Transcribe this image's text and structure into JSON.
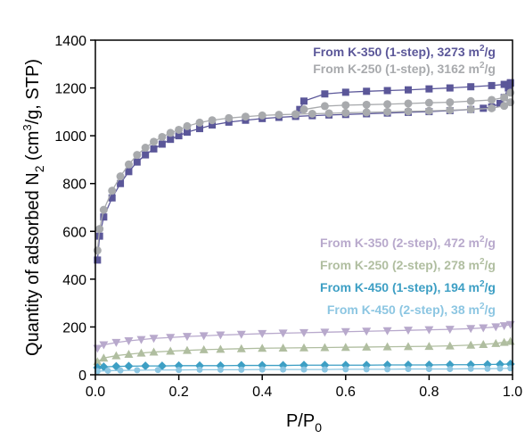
{
  "chart_data": {
    "type": "scatter",
    "xlabel": "P/P",
    "xlabel_sub": "0",
    "ylabel": "Quantity of adsorbed N",
    "ylabel_sub": "2",
    "ylabel_tail_a": " (cm",
    "ylabel_sup": "3",
    "ylabel_tail_b": "/g, STP)",
    "xlim": [
      0.0,
      1.0
    ],
    "ylim": [
      0,
      1400
    ],
    "xticks": [
      "0.0",
      "0.2",
      "0.4",
      "0.6",
      "0.8",
      "1.0"
    ],
    "yticks": [
      "0",
      "200",
      "400",
      "600",
      "800",
      "1000",
      "1200",
      "1400"
    ],
    "grid": false,
    "legend_placement": "top-right and middle-right",
    "series": [
      {
        "name": "From K-350 (1-step), 3273 m",
        "name_sup": "2",
        "name_tail": "/g",
        "color": "#5b5799",
        "marker": "square",
        "adsorption": {
          "x": [
            0.005,
            0.01,
            0.02,
            0.04,
            0.06,
            0.08,
            0.1,
            0.12,
            0.14,
            0.16,
            0.18,
            0.2,
            0.22,
            0.25,
            0.28,
            0.32,
            0.36,
            0.4,
            0.44,
            0.48,
            0.52,
            0.56,
            0.6,
            0.65,
            0.7,
            0.75,
            0.8,
            0.85,
            0.9,
            0.93,
            0.95,
            0.97,
            0.98,
            0.99,
            0.995
          ],
          "y": [
            480,
            580,
            660,
            740,
            800,
            850,
            890,
            920,
            945,
            965,
            985,
            1000,
            1015,
            1030,
            1045,
            1057,
            1065,
            1072,
            1077,
            1081,
            1084,
            1087,
            1089,
            1092,
            1095,
            1098,
            1101,
            1105,
            1110,
            1115,
            1120,
            1135,
            1160,
            1200,
            1220
          ]
        },
        "desorption": {
          "x": [
            0.995,
            0.98,
            0.95,
            0.9,
            0.85,
            0.8,
            0.75,
            0.7,
            0.65,
            0.6,
            0.55,
            0.5,
            0.49,
            0.48
          ],
          "y": [
            1222,
            1215,
            1210,
            1205,
            1200,
            1196,
            1192,
            1189,
            1186,
            1182,
            1175,
            1145,
            1110,
            1085
          ]
        }
      },
      {
        "name": "From K-250 (1-step), 3162 m",
        "name_sup": "2",
        "name_tail": "/g",
        "color": "#a8aaad",
        "marker": "circle",
        "adsorption": {
          "x": [
            0.005,
            0.01,
            0.02,
            0.04,
            0.06,
            0.08,
            0.1,
            0.12,
            0.14,
            0.16,
            0.18,
            0.2,
            0.22,
            0.25,
            0.28,
            0.32,
            0.36,
            0.4,
            0.44,
            0.48,
            0.52,
            0.56,
            0.6,
            0.65,
            0.7,
            0.75,
            0.8,
            0.85,
            0.9,
            0.95,
            0.98,
            0.995
          ],
          "y": [
            520,
            610,
            690,
            770,
            830,
            880,
            920,
            950,
            975,
            995,
            1012,
            1025,
            1040,
            1055,
            1065,
            1074,
            1080,
            1085,
            1088,
            1090,
            1092,
            1094,
            1096,
            1098,
            1100,
            1102,
            1104,
            1107,
            1110,
            1115,
            1125,
            1140
          ]
        },
        "desorption": {
          "x": [
            0.995,
            0.98,
            0.95,
            0.9,
            0.85,
            0.8,
            0.75,
            0.7,
            0.65,
            0.6,
            0.55,
            0.5,
            0.48
          ],
          "y": [
            1180,
            1160,
            1150,
            1145,
            1140,
            1138,
            1135,
            1132,
            1130,
            1128,
            1124,
            1110,
            1090
          ]
        }
      },
      {
        "name": "From K-350 (2-step), 472 m",
        "name_sup": "2",
        "name_tail": "/g",
        "color": "#b8a9cc",
        "marker": "triangle-down",
        "adsorption": {
          "x": [
            0.005,
            0.02,
            0.05,
            0.08,
            0.11,
            0.14,
            0.18,
            0.22,
            0.26,
            0.3,
            0.35,
            0.4,
            0.45,
            0.5,
            0.55,
            0.6,
            0.65,
            0.7,
            0.75,
            0.8,
            0.85,
            0.9,
            0.93,
            0.96,
            0.98,
            0.995
          ],
          "y": [
            110,
            125,
            135,
            142,
            147,
            152,
            156,
            160,
            163,
            166,
            169,
            172,
            174,
            176,
            178,
            180,
            182,
            184,
            186,
            188,
            190,
            193,
            196,
            200,
            205,
            210
          ]
        },
        "desorption": {
          "x": [],
          "y": []
        }
      },
      {
        "name": "From K-250 (2-step), 278 m",
        "name_sup": "2",
        "name_tail": "/g",
        "color": "#b0bea0",
        "marker": "triangle-up",
        "adsorption": {
          "x": [
            0.005,
            0.02,
            0.05,
            0.08,
            0.11,
            0.14,
            0.18,
            0.22,
            0.26,
            0.3,
            0.35,
            0.4,
            0.45,
            0.5,
            0.55,
            0.6,
            0.65,
            0.7,
            0.75,
            0.8,
            0.85,
            0.9,
            0.93,
            0.96,
            0.98,
            0.995
          ],
          "y": [
            55,
            70,
            80,
            86,
            91,
            95,
            99,
            102,
            105,
            107,
            109,
            111,
            112,
            113,
            114,
            115,
            116,
            117,
            118,
            119,
            121,
            124,
            127,
            131,
            136,
            140
          ]
        },
        "desorption": {
          "x": [],
          "y": []
        }
      },
      {
        "name": "From K-450 (1-step), 194 m",
        "name_sup": "2",
        "name_tail": "/g",
        "color": "#3d9fc4",
        "marker": "diamond",
        "adsorption": {
          "x": [
            0.005,
            0.02,
            0.05,
            0.08,
            0.12,
            0.16,
            0.2,
            0.25,
            0.3,
            0.35,
            0.4,
            0.45,
            0.5,
            0.55,
            0.6,
            0.65,
            0.7,
            0.75,
            0.8,
            0.85,
            0.9,
            0.94,
            0.97,
            0.995
          ],
          "y": [
            30,
            33,
            35,
            36,
            37,
            37,
            38,
            38,
            38,
            39,
            39,
            39,
            40,
            40,
            40,
            40,
            41,
            41,
            41,
            42,
            42,
            43,
            44,
            45
          ]
        },
        "desorption": {
          "x": [],
          "y": []
        }
      },
      {
        "name": "From K-450 (2-step), 38 m",
        "name_sup": "2",
        "name_tail": "/g",
        "color": "#8cc6e2",
        "marker": "circle-small",
        "adsorption": {
          "x": [
            0.005,
            0.03,
            0.06,
            0.1,
            0.15,
            0.2,
            0.25,
            0.3,
            0.35,
            0.4,
            0.45,
            0.5,
            0.55,
            0.6,
            0.65,
            0.7,
            0.75,
            0.8,
            0.85,
            0.9,
            0.94,
            0.97,
            0.995
          ],
          "y": [
            15,
            17,
            18,
            19,
            20,
            20,
            21,
            21,
            21,
            22,
            22,
            22,
            22,
            23,
            23,
            23,
            24,
            24,
            24,
            25,
            25,
            26,
            27
          ]
        },
        "desorption": {
          "x": [],
          "y": []
        }
      }
    ],
    "legend_groups": [
      [
        0,
        1
      ],
      [
        2,
        3,
        4,
        5
      ]
    ]
  }
}
